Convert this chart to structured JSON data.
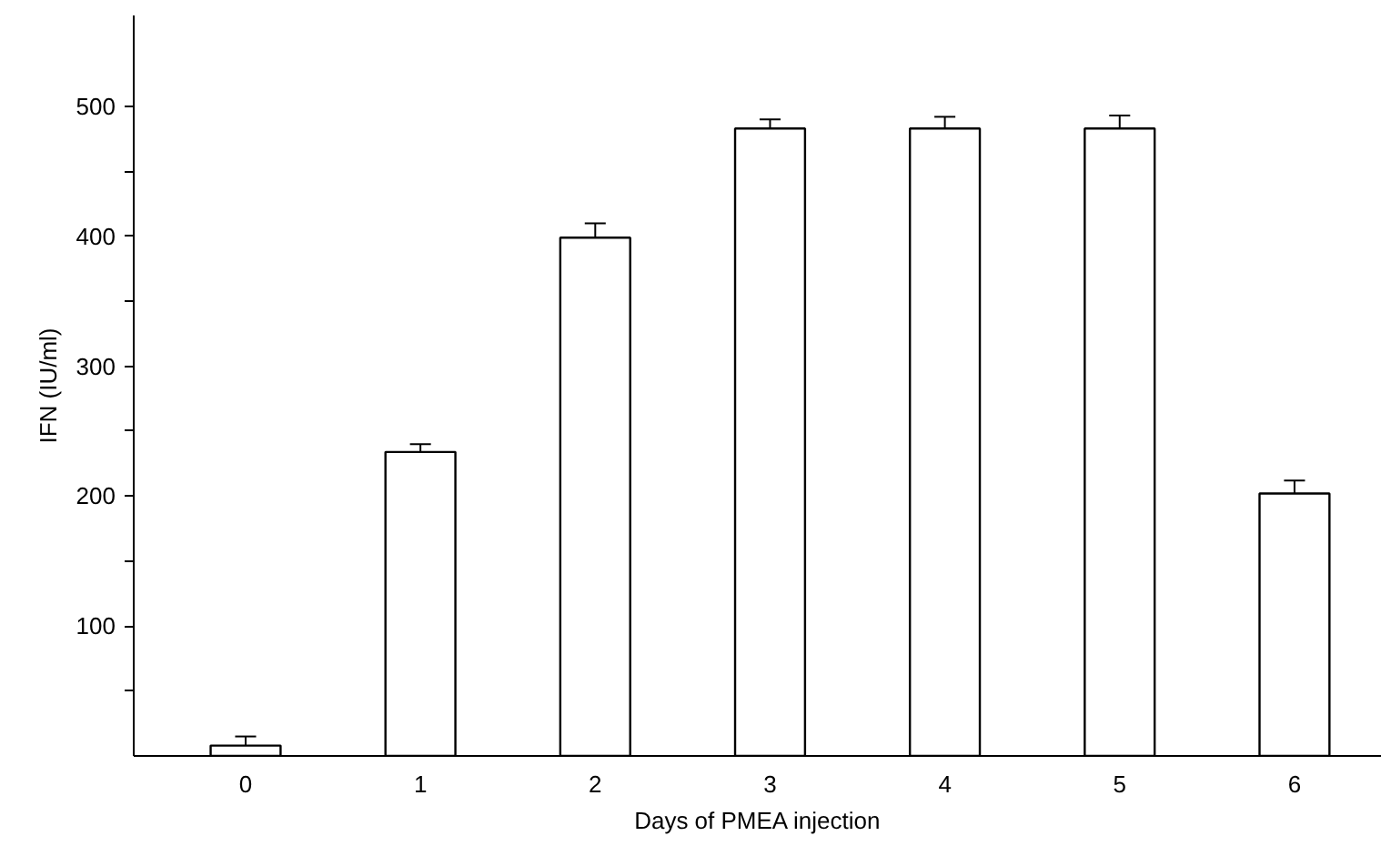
{
  "chart_data": {
    "type": "bar",
    "xlabel": "Days of PMEA injection",
    "ylabel": "IFN (IU/ml)",
    "categories": [
      "0",
      "1",
      "2",
      "3",
      "4",
      "5",
      "6"
    ],
    "values": [
      8,
      234,
      399,
      483,
      483,
      483,
      202
    ],
    "errors": [
      [
        8,
        15
      ],
      [
        234,
        240
      ],
      [
        399,
        410
      ],
      [
        483,
        490
      ],
      [
        483,
        492
      ],
      [
        483,
        493
      ],
      [
        202,
        212
      ]
    ],
    "color": "#ffffff",
    "ylim": [
      0,
      570
    ],
    "yticks": [
      {
        "value": 50,
        "label": null
      },
      100,
      {
        "value": 150,
        "label": null
      },
      200,
      {
        "value": 250,
        "label": null
      },
      300,
      {
        "value": 350,
        "label": null
      },
      400,
      {
        "value": 450,
        "label": null
      },
      500
    ],
    "grid": false
  }
}
